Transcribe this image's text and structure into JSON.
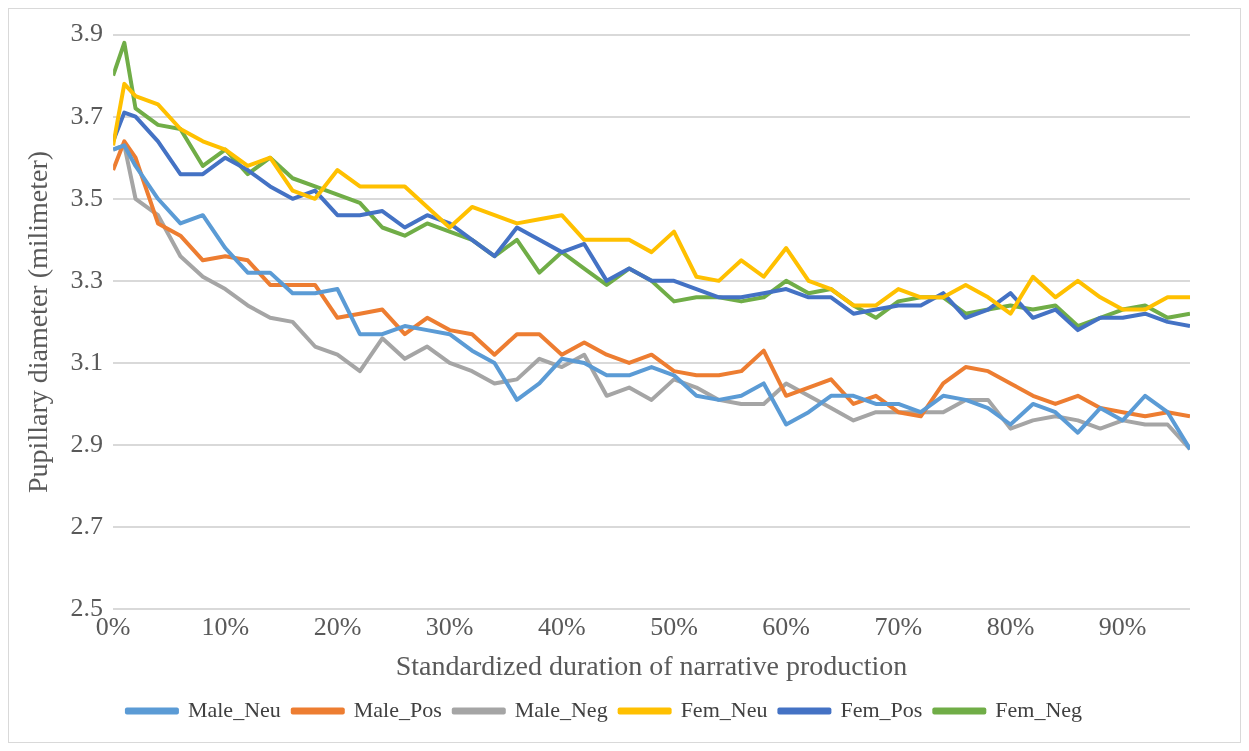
{
  "chart_data": {
    "type": "line",
    "xlabel": "Standardized duration of narrative production",
    "ylabel": "Pupillary diameter (milimeter)",
    "x": [
      0,
      1,
      2,
      4,
      6,
      8,
      10,
      12,
      14,
      16,
      18,
      20,
      22,
      24,
      26,
      28,
      30,
      32,
      34,
      36,
      38,
      40,
      42,
      44,
      46,
      48,
      50,
      52,
      54,
      56,
      58,
      60,
      62,
      64,
      66,
      68,
      70,
      72,
      74,
      76,
      78,
      80,
      82,
      84,
      86,
      88,
      90,
      92,
      94,
      96
    ],
    "series": [
      {
        "name": "Male_Neu",
        "color": "#5b9bd5",
        "values": [
          3.62,
          3.63,
          3.58,
          3.5,
          3.44,
          3.46,
          3.38,
          3.32,
          3.32,
          3.27,
          3.27,
          3.28,
          3.17,
          3.17,
          3.19,
          3.18,
          3.17,
          3.13,
          3.1,
          3.01,
          3.05,
          3.11,
          3.1,
          3.07,
          3.07,
          3.09,
          3.07,
          3.02,
          3.01,
          3.02,
          3.05,
          2.95,
          2.98,
          3.02,
          3.02,
          3.0,
          3.0,
          2.98,
          3.02,
          3.01,
          2.99,
          2.95,
          3.0,
          2.98,
          2.93,
          2.99,
          2.96,
          3.02,
          2.98,
          2.89
        ]
      },
      {
        "name": "Male_Pos",
        "color": "#ed7d31",
        "values": [
          3.57,
          3.64,
          3.6,
          3.44,
          3.41,
          3.35,
          3.36,
          3.35,
          3.29,
          3.29,
          3.29,
          3.21,
          3.22,
          3.23,
          3.17,
          3.21,
          3.18,
          3.17,
          3.12,
          3.17,
          3.17,
          3.12,
          3.15,
          3.12,
          3.1,
          3.12,
          3.08,
          3.07,
          3.07,
          3.08,
          3.13,
          3.02,
          3.04,
          3.06,
          3.0,
          3.02,
          2.98,
          2.97,
          3.05,
          3.09,
          3.08,
          3.05,
          3.02,
          3.0,
          3.02,
          2.99,
          2.98,
          2.97,
          2.98,
          2.97
        ]
      },
      {
        "name": "Male_Neg",
        "color": "#a5a5a5",
        "values": [
          3.62,
          3.63,
          3.5,
          3.46,
          3.36,
          3.31,
          3.28,
          3.24,
          3.21,
          3.2,
          3.14,
          3.12,
          3.08,
          3.16,
          3.11,
          3.14,
          3.1,
          3.08,
          3.05,
          3.06,
          3.11,
          3.09,
          3.12,
          3.02,
          3.04,
          3.01,
          3.06,
          3.04,
          3.01,
          3.0,
          3.0,
          3.05,
          3.02,
          2.99,
          2.96,
          2.98,
          2.98,
          2.98,
          2.98,
          3.01,
          3.01,
          2.94,
          2.96,
          2.97,
          2.96,
          2.94,
          2.96,
          2.95,
          2.95,
          2.89
        ]
      },
      {
        "name": "Fem_Neu",
        "color": "#ffc000",
        "values": [
          3.63,
          3.78,
          3.75,
          3.73,
          3.67,
          3.64,
          3.62,
          3.58,
          3.6,
          3.52,
          3.5,
          3.57,
          3.53,
          3.53,
          3.53,
          3.48,
          3.43,
          3.48,
          3.46,
          3.44,
          3.45,
          3.46,
          3.4,
          3.4,
          3.4,
          3.37,
          3.42,
          3.31,
          3.3,
          3.35,
          3.31,
          3.38,
          3.3,
          3.28,
          3.24,
          3.24,
          3.28,
          3.26,
          3.26,
          3.29,
          3.26,
          3.22,
          3.31,
          3.26,
          3.3,
          3.26,
          3.23,
          3.23,
          3.26,
          3.26
        ]
      },
      {
        "name": "Fem_Pos",
        "color": "#4472c4",
        "values": [
          3.64,
          3.71,
          3.7,
          3.64,
          3.56,
          3.56,
          3.6,
          3.57,
          3.53,
          3.5,
          3.52,
          3.46,
          3.46,
          3.47,
          3.43,
          3.46,
          3.44,
          3.4,
          3.36,
          3.43,
          3.4,
          3.37,
          3.39,
          3.3,
          3.33,
          3.3,
          3.3,
          3.28,
          3.26,
          3.26,
          3.27,
          3.28,
          3.26,
          3.26,
          3.22,
          3.23,
          3.24,
          3.24,
          3.27,
          3.21,
          3.23,
          3.27,
          3.21,
          3.23,
          3.18,
          3.21,
          3.21,
          3.22,
          3.2,
          3.19
        ]
      },
      {
        "name": "Fem_Neg",
        "color": "#70ad47",
        "values": [
          3.8,
          3.88,
          3.72,
          3.68,
          3.67,
          3.58,
          3.62,
          3.56,
          3.6,
          3.55,
          3.53,
          3.51,
          3.49,
          3.43,
          3.41,
          3.44,
          3.42,
          3.4,
          3.36,
          3.4,
          3.32,
          3.37,
          3.33,
          3.29,
          3.33,
          3.3,
          3.25,
          3.26,
          3.26,
          3.25,
          3.26,
          3.3,
          3.27,
          3.28,
          3.24,
          3.21,
          3.25,
          3.26,
          3.26,
          3.22,
          3.23,
          3.24,
          3.23,
          3.24,
          3.19,
          3.21,
          3.23,
          3.24,
          3.21,
          3.22
        ]
      }
    ],
    "xlim": [
      0,
      96
    ],
    "xticks": [
      {
        "value": 0,
        "label": "0%"
      },
      {
        "value": 10,
        "label": "10%"
      },
      {
        "value": 20,
        "label": "20%"
      },
      {
        "value": 30,
        "label": "30%"
      },
      {
        "value": 40,
        "label": "40%"
      },
      {
        "value": 50,
        "label": "50%"
      },
      {
        "value": 60,
        "label": "60%"
      },
      {
        "value": 70,
        "label": "70%"
      },
      {
        "value": 80,
        "label": "80%"
      },
      {
        "value": 90,
        "label": "90%"
      }
    ],
    "ylim": [
      2.5,
      3.9
    ],
    "yticks": [
      2.5,
      2.7,
      2.9,
      3.1,
      3.3,
      3.5,
      3.7,
      3.9
    ],
    "grid": "y",
    "legend": "bottom",
    "marker": "none",
    "line_style": "solid"
  }
}
